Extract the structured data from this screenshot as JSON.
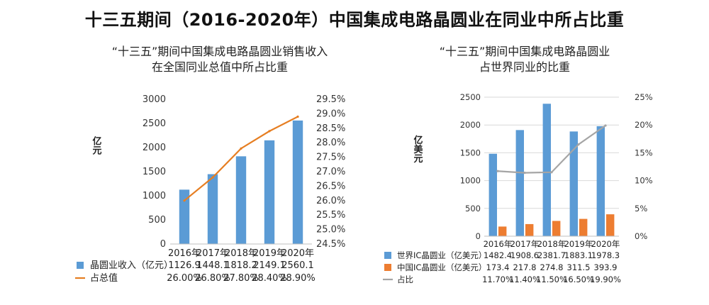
{
  "page": {
    "title": "十三五期间（2016-2020年）中国集成电路晶圆业在同业中所占比重"
  },
  "colors": {
    "bar_blue": "#5b9bd5",
    "bar_orange": "#ed7d31",
    "line_orange": "#e67e22",
    "line_gray": "#a5a5a5",
    "grid": "#d9d9d9"
  },
  "chart_data": [
    {
      "type": "bar",
      "title_line1": "“十三五”期间中国集成电路晶圆业销售收入",
      "title_line2": "在全国同业总值中所占比重",
      "ylabel": "亿元",
      "categories": [
        "2016年",
        "2017年",
        "2018年",
        "2019年",
        "2020年"
      ],
      "ylim": [
        0,
        3000
      ],
      "y_ticks": [
        "3000",
        "2500",
        "2000",
        "1500",
        "1000",
        "500",
        "0"
      ],
      "y2lim": [
        24.5,
        29.5
      ],
      "y2_ticks": [
        "29.5%",
        "29.0%",
        "28.5%",
        "28.0%",
        "27.5%",
        "27.0%",
        "26.5%",
        "26.0%",
        "25.5%",
        "25.0%",
        "24.5%"
      ],
      "series": [
        {
          "name": "晶圆业收入（亿元）",
          "kind": "bar",
          "axis": "left",
          "values": [
            1126.9,
            1448.1,
            1818.2,
            2149.1,
            2560.1
          ],
          "labels": [
            "1126.9",
            "1448.1",
            "1818.2",
            "2149.1",
            "2560.1"
          ]
        },
        {
          "name": "占总值",
          "kind": "line",
          "axis": "right",
          "values": [
            26.0,
            26.8,
            27.8,
            28.4,
            28.9
          ],
          "labels": [
            "26.00%",
            "26.80%",
            "27.80%",
            "28.40%",
            "28.90%"
          ]
        }
      ],
      "grid": false,
      "legend": "bottom-table"
    },
    {
      "type": "bar",
      "title_line1": "“十三五”期间中国集成电路晶圆业",
      "title_line2": "占世界同业的比重",
      "ylabel": "亿美元",
      "categories": [
        "2016年",
        "2017年",
        "2018年",
        "2019年",
        "2020年"
      ],
      "ylim": [
        0,
        2500
      ],
      "y_ticks": [
        "2500",
        "2000",
        "1500",
        "1000",
        "500",
        "0"
      ],
      "y2lim": [
        0,
        25
      ],
      "y2_ticks": [
        "25%",
        "20%",
        "15%",
        "10%",
        "5%",
        "0%"
      ],
      "series": [
        {
          "name": "世界IC晶圆业（亿美元）",
          "kind": "bar",
          "axis": "left",
          "values": [
            1482.4,
            1908.6,
            2381.7,
            1883.1,
            1978.3
          ],
          "labels": [
            "1482.4",
            "1908.6",
            "2381.7",
            "1883.1",
            "1978.3"
          ]
        },
        {
          "name": "中国IC晶圆业（亿美元）",
          "kind": "bar",
          "axis": "left",
          "values": [
            173.4,
            217.8,
            274.8,
            311.5,
            393.9
          ],
          "labels": [
            "173.4",
            "217.8",
            "274.8",
            "311.5",
            "393.9"
          ]
        },
        {
          "name": "占比",
          "kind": "line",
          "axis": "right",
          "values": [
            11.7,
            11.4,
            11.5,
            16.5,
            19.9
          ],
          "labels": [
            "11.70%",
            "11.40%",
            "11.50%",
            "16.50%",
            "19.90%"
          ]
        }
      ],
      "grid": true,
      "legend": "bottom-table"
    }
  ]
}
